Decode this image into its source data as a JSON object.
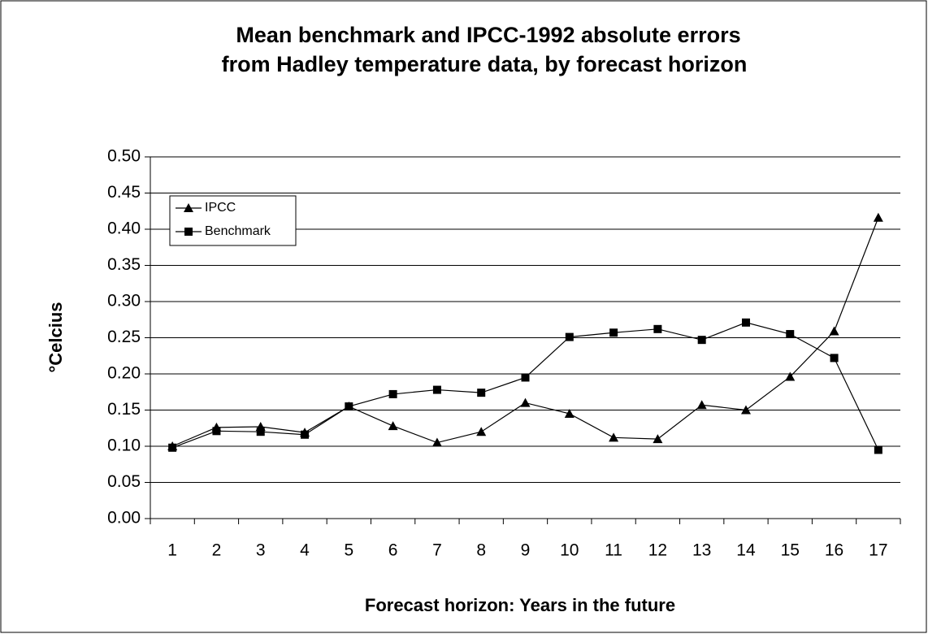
{
  "chart_data": {
    "type": "line",
    "title": [
      "Mean benchmark and IPCC-1992 absolute errors",
      "from Hadley temperature data, by forecast horizon"
    ],
    "x_label": "Forecast horizon: Years in the future",
    "y_label": "°Celcius",
    "categories": [
      "1",
      "2",
      "3",
      "4",
      "5",
      "6",
      "7",
      "8",
      "9",
      "10",
      "11",
      "12",
      "13",
      "14",
      "15",
      "16",
      "17"
    ],
    "series": [
      {
        "name": "IPCC",
        "color": "#000000",
        "marker": "triangle",
        "values": [
          0.1,
          0.126,
          0.127,
          0.119,
          0.155,
          0.128,
          0.105,
          0.12,
          0.16,
          0.145,
          0.112,
          0.11,
          0.157,
          0.15,
          0.196,
          0.259,
          0.416
        ]
      },
      {
        "name": "Benchmark",
        "color": "#000000",
        "marker": "square",
        "values": [
          0.098,
          0.121,
          0.12,
          0.116,
          0.155,
          0.172,
          0.178,
          0.174,
          0.195,
          0.251,
          0.257,
          0.262,
          0.247,
          0.271,
          0.255,
          0.222,
          0.095
        ]
      }
    ],
    "ylim": [
      0,
      0.5
    ],
    "yticks": [
      {
        "value": 0,
        "label": "0.00"
      },
      {
        "value": 0.05,
        "label": "0.05"
      },
      {
        "value": 0.1,
        "label": "0.10"
      },
      {
        "value": 0.15,
        "label": "0.15"
      },
      {
        "value": 0.2,
        "label": "0.20"
      },
      {
        "value": 0.25,
        "label": "0.25"
      },
      {
        "value": 0.3,
        "label": "0.30"
      },
      {
        "value": 0.35,
        "label": "0.35"
      },
      {
        "value": 0.4,
        "label": "0.40"
      },
      {
        "value": 0.45,
        "label": "0.45"
      },
      {
        "value": 0.5,
        "label": "0.50"
      }
    ],
    "grid": true,
    "legend": "top-left"
  }
}
